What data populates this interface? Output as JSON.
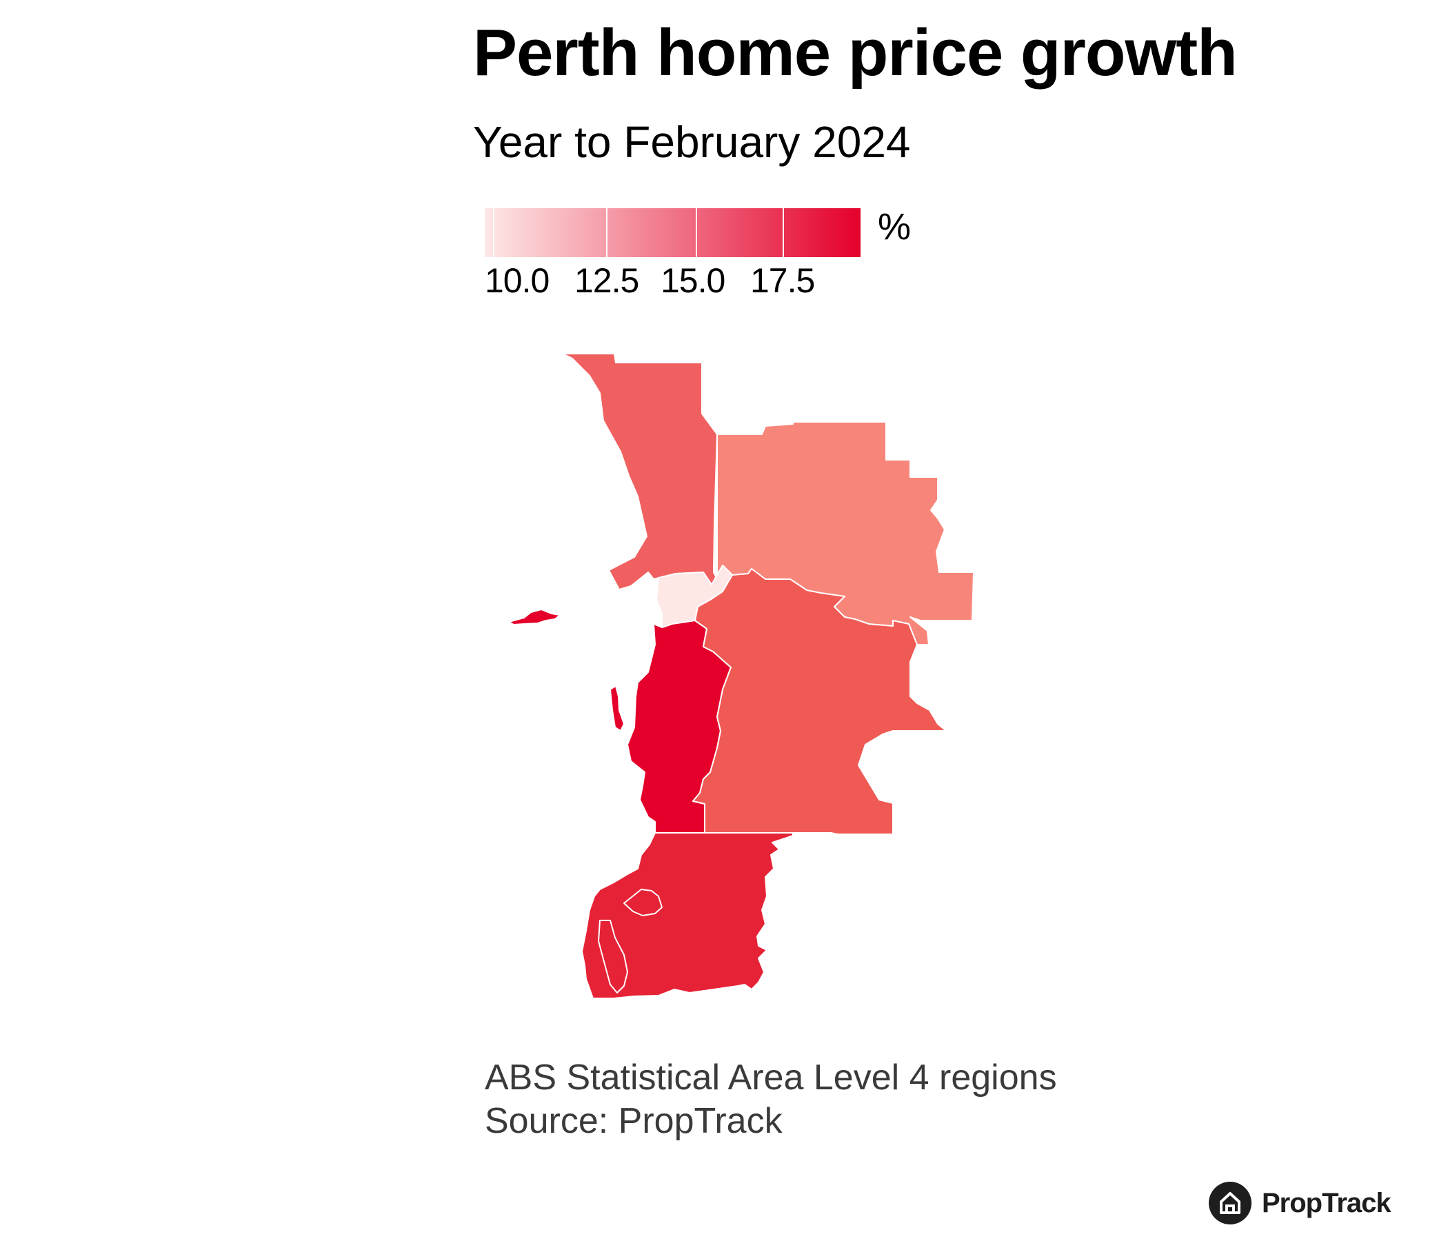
{
  "header": {
    "title": "Perth home price growth",
    "subtitle": "Year to February 2024"
  },
  "legend": {
    "unit": "%",
    "ticks": [
      {
        "label": "10.0",
        "value": 10.0
      },
      {
        "label": "12.5",
        "value": 12.5
      },
      {
        "label": "15.0",
        "value": 15.0
      },
      {
        "label": "17.5",
        "value": 17.5
      }
    ],
    "range": [
      9.5,
      20.0
    ],
    "color_low": "#fde8e6",
    "color_high": "#e4002b"
  },
  "chart_data": {
    "type": "heatmap",
    "map_type": "choropleth",
    "title": "Perth home price growth",
    "subtitle": "Year to February 2024",
    "color_scale": {
      "unit": "%",
      "min": 9.5,
      "max": 20.0,
      "ticks": [
        10.0,
        12.5,
        15.0,
        17.5
      ],
      "colors": [
        "#fde8e6",
        "#e4002b"
      ]
    },
    "regions": [
      {
        "id": "north-west",
        "value": 16.3,
        "color": "#f16060"
      },
      {
        "id": "north-east",
        "value": 14.8,
        "color": "#f8857a"
      },
      {
        "id": "inner",
        "value": 10.2,
        "color": "#fde8e6"
      },
      {
        "id": "south-west",
        "value": 20.0,
        "color": "#e4002b"
      },
      {
        "id": "south-east",
        "value": 16.9,
        "color": "#f05a55"
      },
      {
        "id": "mandurah",
        "value": 19.2,
        "color": "#e62236"
      },
      {
        "id": "rottnest",
        "value": 20.0,
        "color": "#e4002b"
      }
    ]
  },
  "footnote": {
    "line1": "ABS Statistical Area Level 4 regions",
    "line2": "Source: PropTrack"
  },
  "brand": {
    "name": "PropTrack",
    "logo_icon": "house-icon"
  }
}
